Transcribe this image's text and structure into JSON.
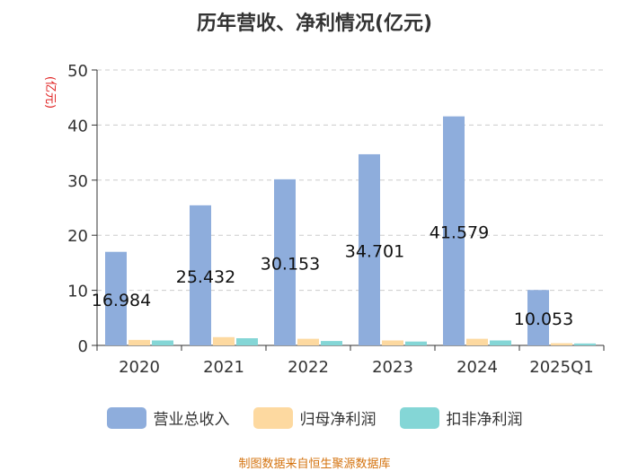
{
  "chart_data": {
    "type": "bar",
    "title": "历年营收、净利情况(亿元)",
    "ylabel": "(亿元)",
    "xlabel": "",
    "ylim": [
      0,
      50
    ],
    "yticks": [
      0,
      10,
      20,
      30,
      40,
      50
    ],
    "grid": true,
    "legend_position": "bottom",
    "categories": [
      "2020",
      "2021",
      "2022",
      "2023",
      "2024",
      "2025Q1"
    ],
    "series": [
      {
        "name": "营业总收入",
        "color": "#8eaddc",
        "values": [
          16.984,
          25.432,
          30.153,
          34.701,
          41.579,
          10.053
        ],
        "show_labels": true
      },
      {
        "name": "归母净利润",
        "color": "#fdd9a0",
        "values": [
          1.0,
          1.5,
          1.2,
          0.9,
          1.2,
          0.4
        ],
        "show_labels": false
      },
      {
        "name": "扣非净利润",
        "color": "#84d6d6",
        "values": [
          0.9,
          1.3,
          0.8,
          0.7,
          0.9,
          0.35
        ],
        "show_labels": false
      }
    ],
    "source": "制图数据来自恒生聚源数据库"
  }
}
